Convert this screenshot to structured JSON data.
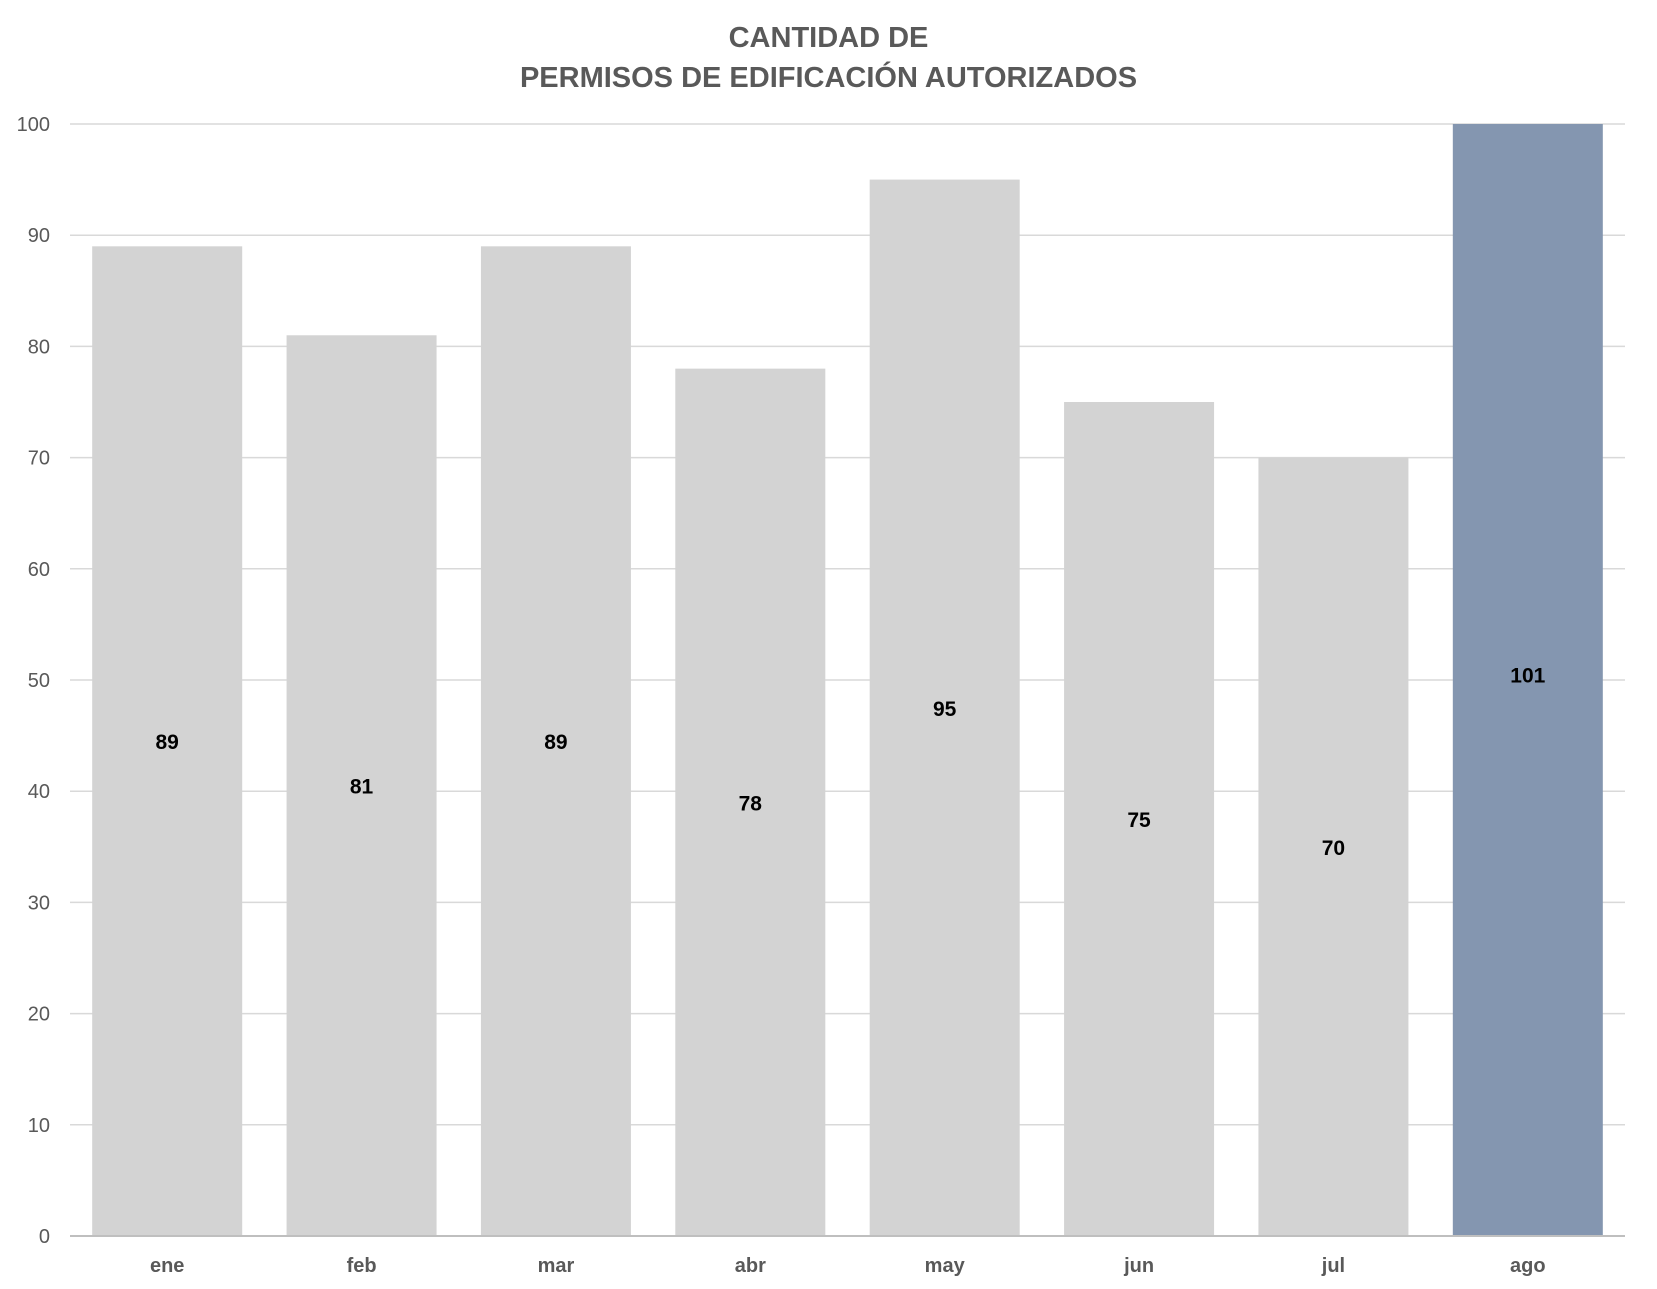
{
  "chart_data": {
    "type": "bar",
    "title_lines": [
      "CANTIDAD DE",
      "PERMISOS DE EDIFICACIÓN  AUTORIZADOS"
    ],
    "categories": [
      "ene",
      "feb",
      "mar",
      "abr",
      "may",
      "jun",
      "jul",
      "ago"
    ],
    "values": [
      89,
      81,
      89,
      78,
      95,
      75,
      70,
      101
    ],
    "ylim": [
      0,
      100
    ],
    "yticks": [
      0,
      10,
      20,
      30,
      40,
      50,
      60,
      70,
      80,
      90,
      100
    ],
    "grid": true,
    "colors": {
      "bar": "#d3d3d3",
      "highlight_bar": "#8496b0",
      "grid": "#d9d9d9",
      "text": "#595959"
    },
    "highlight_index": 7
  }
}
